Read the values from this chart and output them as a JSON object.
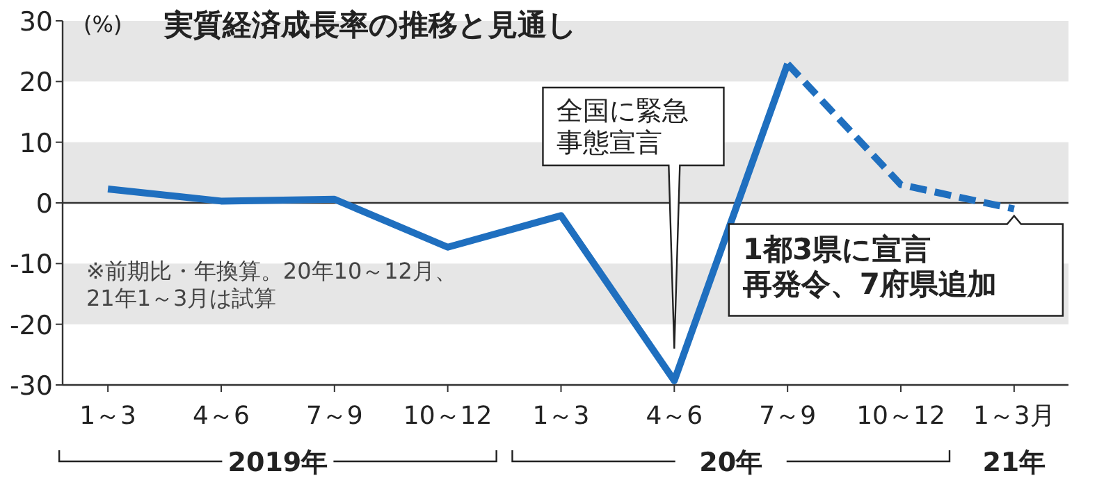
{
  "chart_data": {
    "type": "line",
    "title": "実質経済成長率の推移と見通し",
    "ylabel": "(%)",
    "categories": [
      "1～3",
      "4～6",
      "7～9",
      "10～12",
      "1～3",
      "4～6",
      "7～9",
      "10～12",
      "1～3月"
    ],
    "series": [
      {
        "color": "#1f6fbf",
        "line_style": "solid",
        "values": [
          2.3,
          0.3,
          0.6,
          -7.3,
          -2.1,
          -29.3,
          22.9,
          null,
          null
        ]
      },
      {
        "color": "#1f6fbf",
        "line_style": "dashed",
        "values": [
          null,
          null,
          null,
          null,
          null,
          null,
          22.9,
          3.0,
          -1.0
        ]
      }
    ],
    "ylim": [
      -30,
      30
    ],
    "yticks": [
      -30,
      -20,
      -10,
      0,
      10,
      20,
      30
    ],
    "bands": [
      {
        "axis": "y",
        "from": 20,
        "to": 30,
        "color": "#e6e6e6"
      },
      {
        "axis": "y",
        "from": 0,
        "to": 10,
        "color": "#e6e6e6"
      },
      {
        "axis": "y",
        "from": -20,
        "to": -10,
        "color": "#e6e6e6"
      }
    ],
    "ref_lines": [
      {
        "axis": "y",
        "value": 0,
        "color": "#333333"
      }
    ],
    "annotations": [
      "全国に緊急事態宣言",
      "1都3県に宣言再発令、7府県追加",
      "※前期比・年換算。20年10～12月、21年1～3月は試算",
      "2019年",
      "20年",
      "21年"
    ]
  }
}
